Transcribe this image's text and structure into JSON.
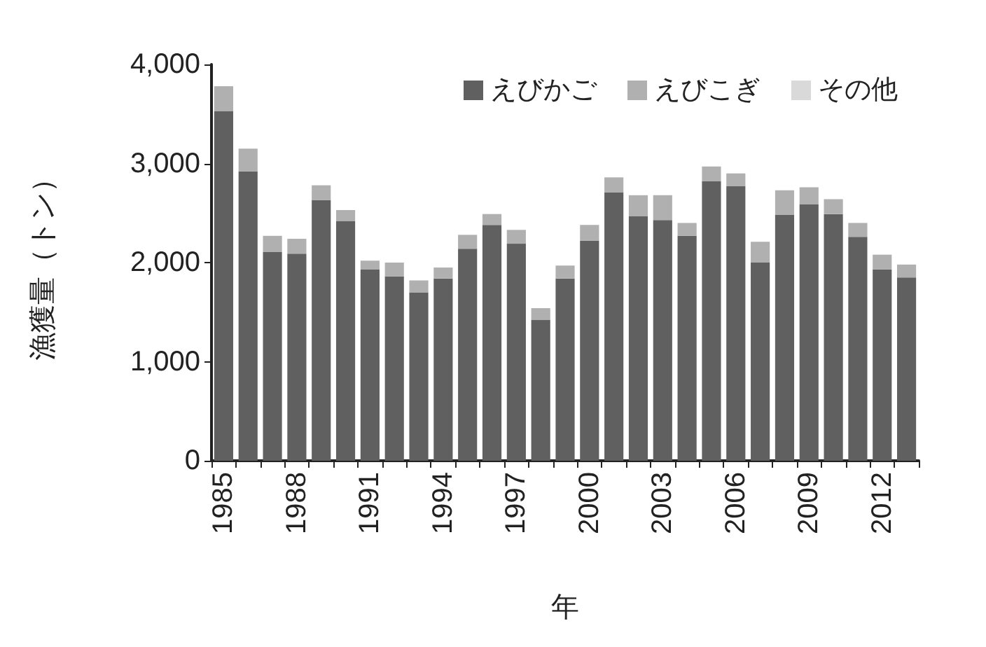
{
  "chart_data": {
    "type": "bar",
    "stacked": true,
    "xlabel": "年",
    "ylabel": "漁獲量（トン）",
    "categories": [
      "1985",
      null,
      null,
      "1988",
      null,
      null,
      "1991",
      null,
      null,
      "1994",
      null,
      null,
      "1997",
      null,
      null,
      "2000",
      null,
      null,
      "2003",
      null,
      null,
      "2006",
      null,
      null,
      "2009",
      null,
      null,
      "2012",
      null
    ],
    "series": [
      {
        "name": "えびかご",
        "color": "#606060",
        "values": [
          3530,
          2920,
          2110,
          2090,
          2630,
          2420,
          1930,
          1860,
          1700,
          1840,
          2140,
          2380,
          2190,
          1420,
          1840,
          2220,
          2710,
          2470,
          2430,
          2270,
          2820,
          2770,
          2000,
          2480,
          2590,
          2490,
          2260,
          1930,
          1850
        ]
      },
      {
        "name": "えびこぎ",
        "color": "#b0b0b0",
        "values": [
          250,
          230,
          160,
          150,
          150,
          110,
          90,
          140,
          120,
          110,
          140,
          110,
          140,
          120,
          130,
          160,
          150,
          210,
          250,
          130,
          150,
          130,
          210,
          250,
          170,
          150,
          140,
          150,
          130
        ]
      },
      {
        "name": "その他",
        "color": "#d9d9d9",
        "values": [
          0,
          0,
          0,
          0,
          0,
          0,
          0,
          0,
          0,
          0,
          0,
          0,
          0,
          0,
          0,
          0,
          0,
          0,
          0,
          0,
          0,
          0,
          0,
          0,
          0,
          0,
          0,
          0,
          0
        ]
      }
    ],
    "ylim": [
      0,
      4000
    ],
    "yticks": [
      {
        "value": 0,
        "label": "0"
      },
      {
        "value": 1000,
        "label": "1,000"
      },
      {
        "value": 2000,
        "label": "2,000"
      },
      {
        "value": 3000,
        "label": "3,000"
      },
      {
        "value": 4000,
        "label": "4,000"
      }
    ],
    "grid": false,
    "legend": "top right"
  }
}
